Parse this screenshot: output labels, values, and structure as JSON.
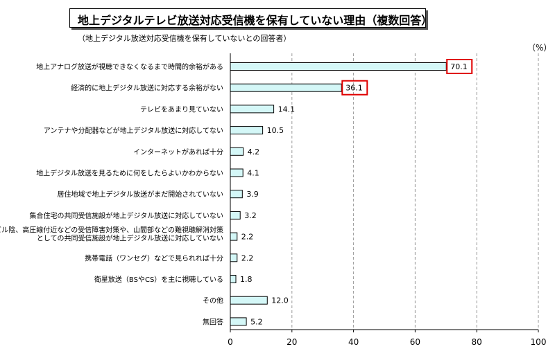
{
  "header": {
    "title": "地上デジタルテレビ放送対応受信機を保有していない理由（複数回答）",
    "subtitle": "（地上デジタル放送対応受信機を保有していないとの回答者）",
    "unit": "（%）"
  },
  "chart_data": {
    "type": "bar",
    "orientation": "horizontal",
    "title": "地上デジタルテレビ放送対応受信機を保有していない理由（複数回答）",
    "subtitle": "（地上デジタル放送対応受信機を保有していないとの回答者）",
    "unit": "（%）",
    "categories": [
      [
        "地上アナログ放送が視聴できなくなるまで時間的余裕がある"
      ],
      [
        "経済的に地上デジタル放送に対応する余裕がない"
      ],
      [
        "テレビをあまり見ていない"
      ],
      [
        "アンテナや分配器などが地上デジタル放送に対応してない"
      ],
      [
        "インターネットがあれば十分"
      ],
      [
        "地上デジタル放送を見るために何をしたらよいかわからない"
      ],
      [
        "居住地域で地上デジタル放送がまだ開始されていない"
      ],
      [
        "集合住宅の共同受信施設が地上デジタル放送に対応していない"
      ],
      [
        "ビル陰、高圧線付近などの受信障害対策や、山間部などの難視聴解消対策",
        "としての共同受信施設が地上デジタル放送に対応していない"
      ],
      [
        "携帯電話（ワンセグ）などで見られれば十分"
      ],
      [
        "衛星放送（BSやCS）を主に視聴している"
      ],
      [
        "その他"
      ],
      [
        "無回答"
      ]
    ],
    "values": [
      70.1,
      36.1,
      14.1,
      10.5,
      4.2,
      4.1,
      3.9,
      3.2,
      2.2,
      2.2,
      1.8,
      12.0,
      5.2
    ],
    "value_labels": [
      "70.1",
      "36.1",
      "14.1",
      "10.5",
      "4.2",
      "4.1",
      "3.9",
      "3.2",
      "2.2",
      "2.2",
      "1.8",
      "12.0",
      "5.2"
    ],
    "highlighted": [
      0,
      1
    ],
    "xlim": [
      0,
      100
    ],
    "xticks": [
      0,
      20,
      40,
      60,
      80,
      100
    ],
    "grid": true,
    "colors": {
      "bar_fill": "#d4f7f7",
      "bar_stroke": "#000000",
      "highlight": "#e00000",
      "grid": "#999999"
    }
  }
}
